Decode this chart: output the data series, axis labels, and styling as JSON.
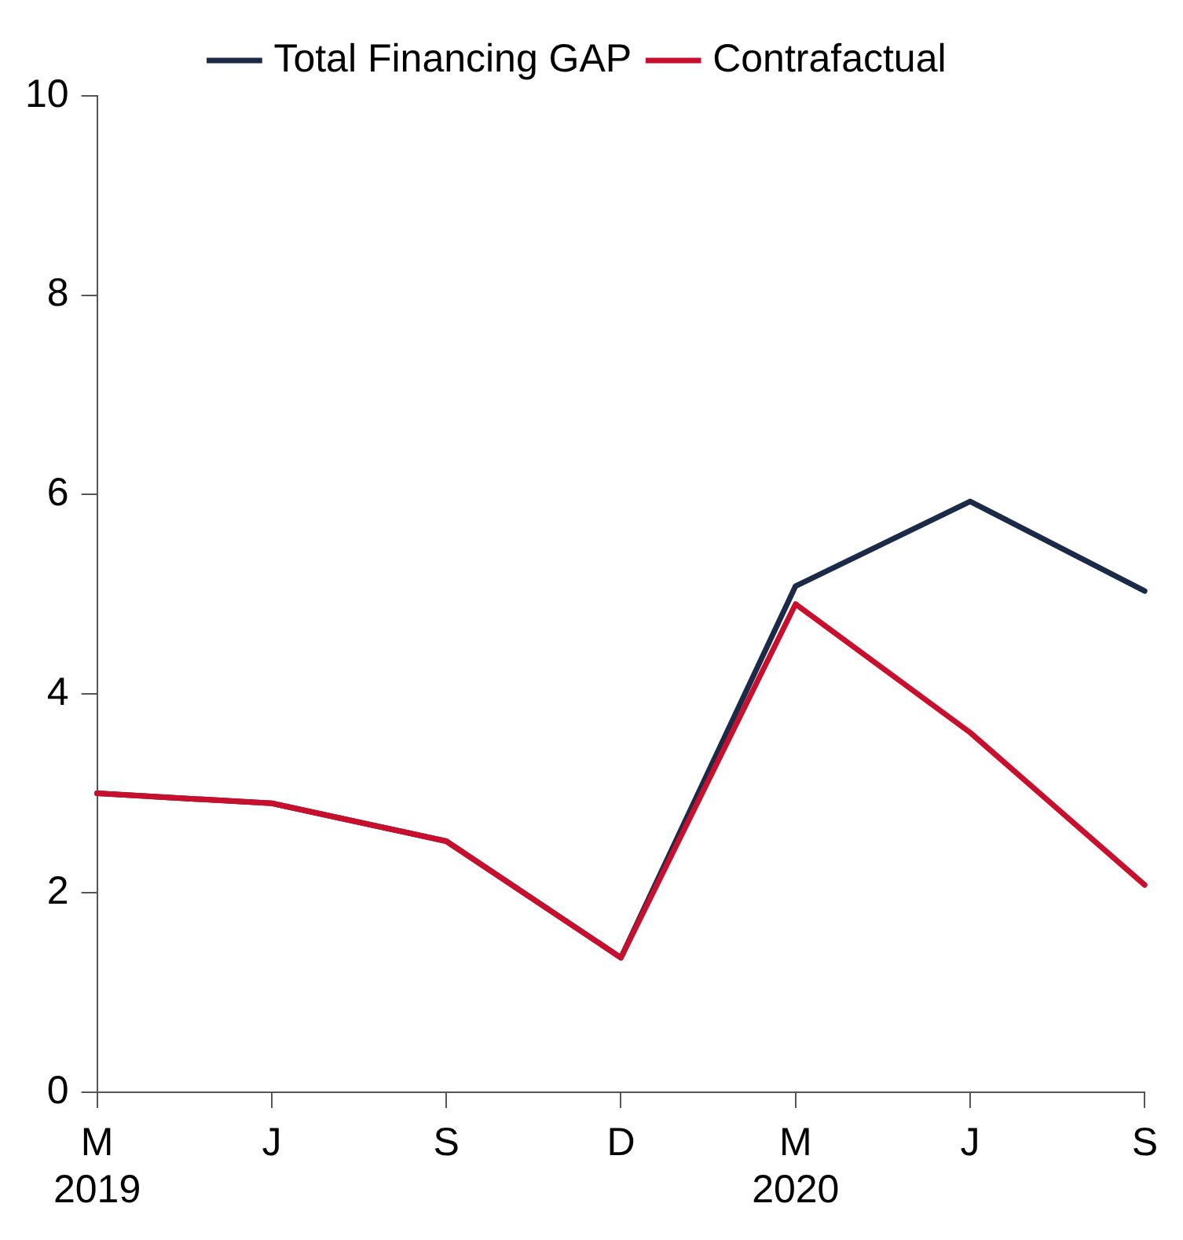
{
  "chart_data": {
    "type": "line",
    "categories": [
      "M\n2019",
      "J",
      "S",
      "D",
      "M\n2020",
      "J",
      "S"
    ],
    "series": [
      {
        "name": "Total Financing GAP",
        "color": "#1b2a47",
        "values": [
          3.0,
          2.9,
          2.52,
          1.35,
          5.08,
          5.93,
          5.03
        ]
      },
      {
        "name": "Contrafactual",
        "color": "#c8102e",
        "values": [
          3.0,
          2.9,
          2.52,
          1.35,
          4.9,
          3.61,
          2.08
        ]
      }
    ],
    "ylim": [
      0,
      10
    ],
    "yticks": [
      0,
      2,
      4,
      6,
      8,
      10
    ],
    "grid": false,
    "legend": "top",
    "marker": "none",
    "line_style": "solid"
  }
}
